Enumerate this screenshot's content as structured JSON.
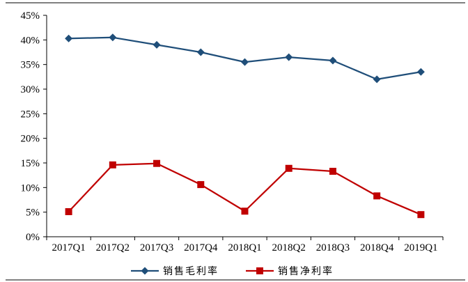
{
  "chart_data": {
    "type": "line",
    "categories": [
      "2017Q1",
      "2017Q2",
      "2017Q3",
      "2017Q4",
      "2018Q1",
      "2018Q2",
      "2018Q3",
      "2018Q4",
      "2019Q1"
    ],
    "ylim": [
      0,
      45
    ],
    "ytick_step": 5,
    "ytick_labels": [
      "0%",
      "5%",
      "10%",
      "15%",
      "20%",
      "25%",
      "30%",
      "35%",
      "40%",
      "45%"
    ],
    "grid": false,
    "legend_position": "bottom",
    "series": [
      {
        "name": "销售毛利率",
        "color": "#1F4E79",
        "marker": "diamond",
        "values": [
          40.3,
          40.5,
          39.0,
          37.5,
          35.5,
          36.5,
          35.8,
          32.0,
          33.5
        ]
      },
      {
        "name": "销售净利率",
        "color": "#C00000",
        "marker": "square",
        "values": [
          5.1,
          14.6,
          14.9,
          10.6,
          5.2,
          13.9,
          13.3,
          8.3,
          4.5
        ]
      }
    ]
  }
}
